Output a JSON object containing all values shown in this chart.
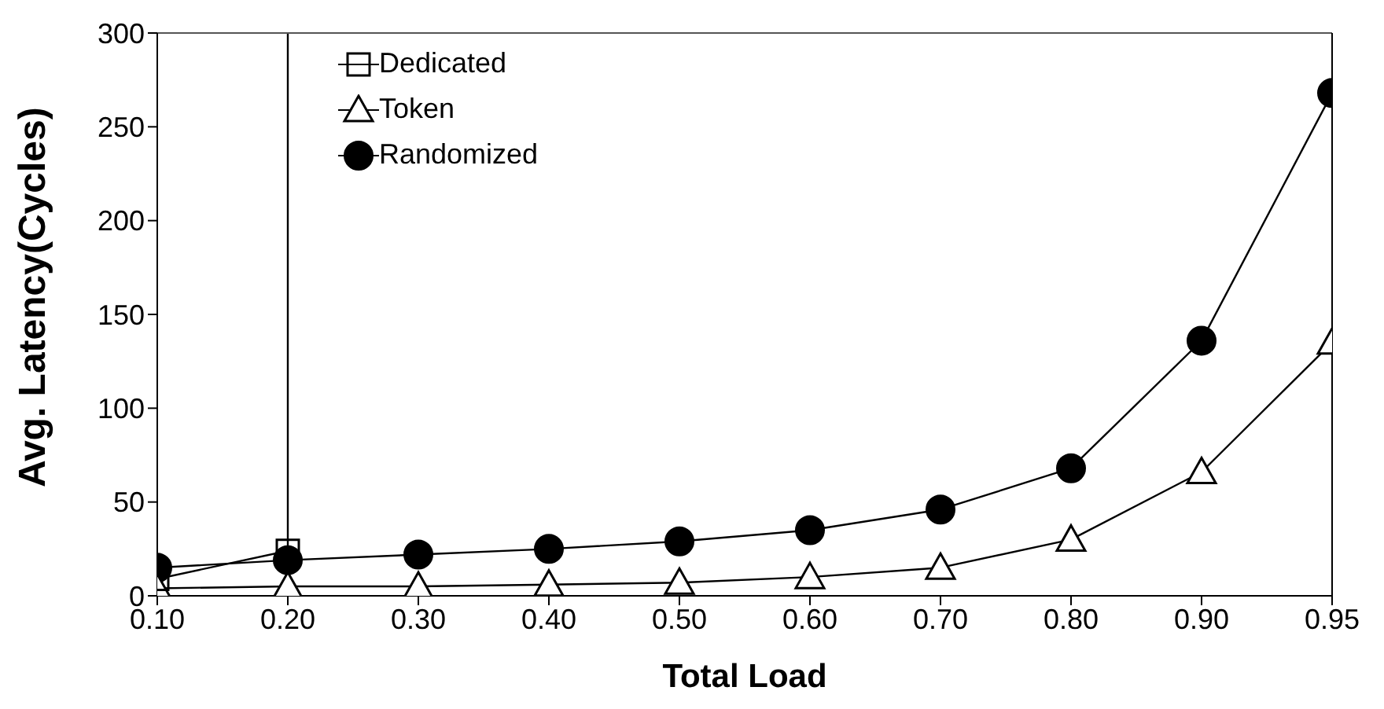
{
  "chart_data": {
    "type": "line",
    "xlabel": "Total Load",
    "ylabel": "Avg. Latency(Cycles)",
    "categories": [
      "0.10",
      "0.20",
      "0.30",
      "0.40",
      "0.50",
      "0.60",
      "0.70",
      "0.80",
      "0.90",
      "0.95"
    ],
    "series": [
      {
        "name": "Dedicated",
        "color": "#000000",
        "marker": "square",
        "values": [
          9,
          24,
          null,
          null,
          null,
          null,
          null,
          null,
          null,
          null
        ]
      },
      {
        "name": "Token",
        "color": "#000000",
        "marker": "triangle",
        "values": [
          4,
          5,
          5,
          6,
          7,
          10,
          15,
          30,
          66,
          135
        ]
      },
      {
        "name": "Randomized",
        "color": "#000000",
        "marker": "circle",
        "values": [
          15,
          19,
          22,
          25,
          29,
          35,
          46,
          68,
          136,
          268
        ]
      }
    ],
    "ref_lines": [
      {
        "axis": "x",
        "value": "0.20",
        "color": "#000000"
      }
    ],
    "ylim": [
      0,
      300
    ],
    "yticks": [
      0,
      50,
      100,
      150,
      200,
      250,
      300
    ],
    "grid": false,
    "legend": "top left"
  }
}
